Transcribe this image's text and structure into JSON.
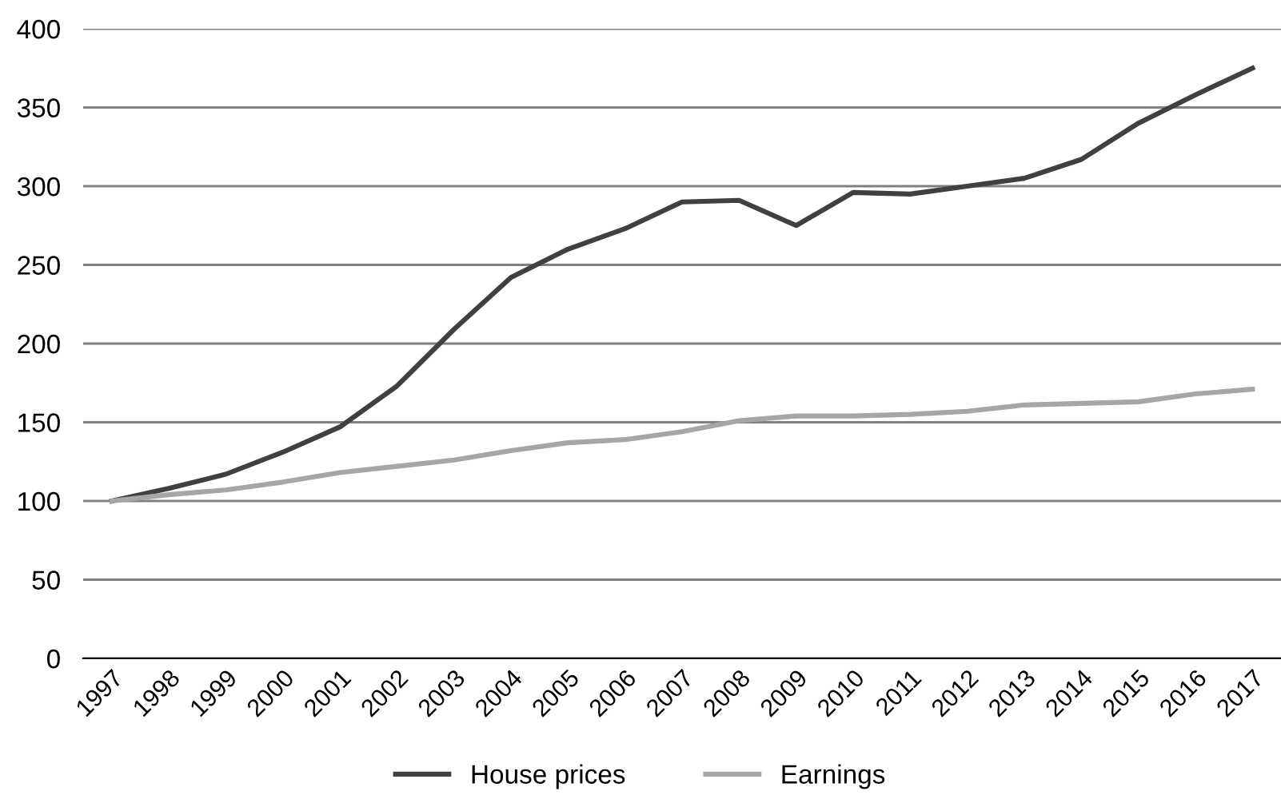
{
  "chart_data": {
    "type": "line",
    "categories": [
      "1997",
      "1998",
      "1999",
      "2000",
      "2001",
      "2002",
      "2003",
      "2004",
      "2005",
      "2006",
      "2007",
      "2008",
      "2009",
      "2010",
      "2011",
      "2012",
      "2013",
      "2014",
      "2015",
      "2016",
      "2017"
    ],
    "series": [
      {
        "name": "House prices",
        "color": "#404040",
        "values": [
          100,
          108,
          117,
          131,
          147,
          173,
          209,
          242,
          260,
          273,
          290,
          291,
          275,
          296,
          295,
          300,
          305,
          317,
          340,
          358,
          375
        ]
      },
      {
        "name": "Earnings",
        "color": "#a6a6a6",
        "values": [
          100,
          104,
          107,
          112,
          118,
          122,
          126,
          132,
          137,
          139,
          144,
          151,
          154,
          154,
          155,
          157,
          161,
          162,
          163,
          168,
          171
        ]
      }
    ],
    "ylim": [
      0,
      400
    ],
    "yticks": [
      0,
      50,
      100,
      150,
      200,
      250,
      300,
      350,
      400
    ],
    "grid": "y",
    "legend": "bottom",
    "marker": "none",
    "line_style": "solid"
  }
}
